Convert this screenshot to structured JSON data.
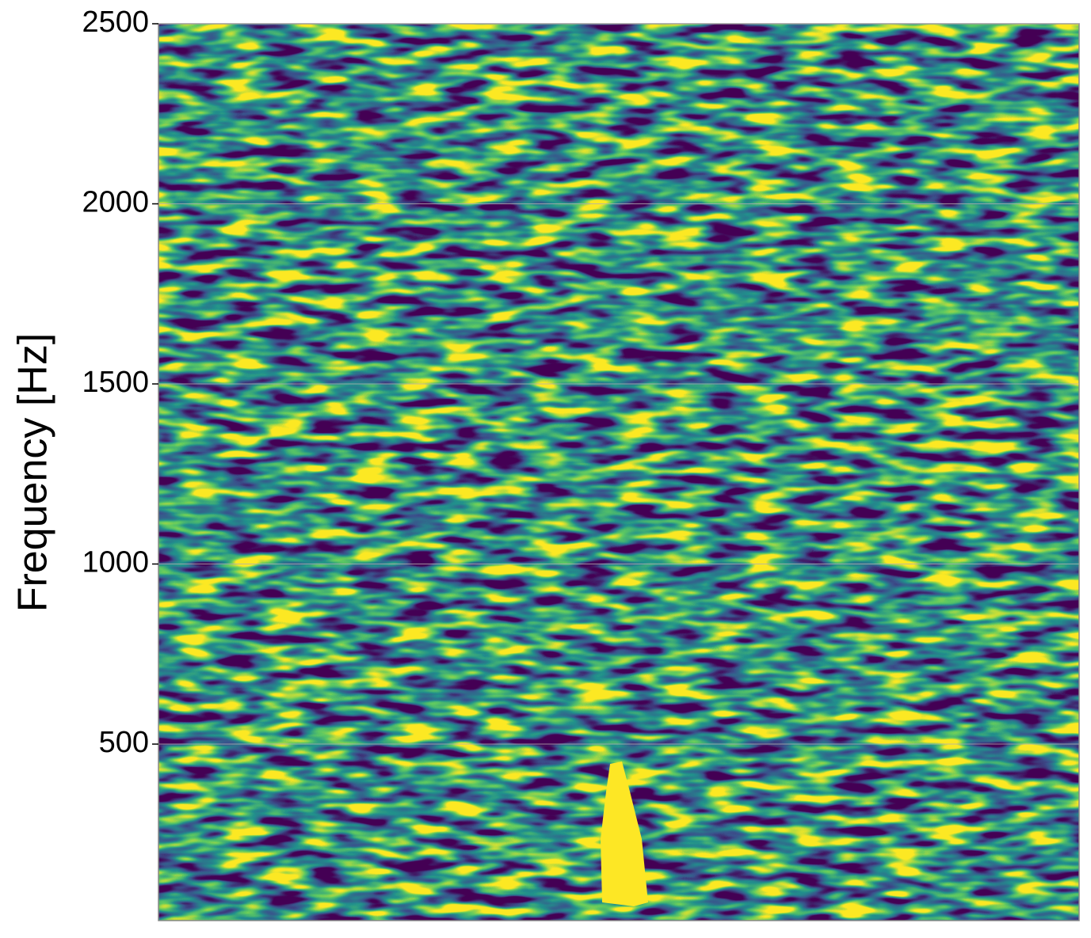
{
  "chart_data": {
    "type": "spectrogram",
    "ylabel": "Frequency [Hz]",
    "ylim": [
      10,
      2500
    ],
    "yticks": [
      500,
      1000,
      1500,
      2000,
      2500
    ],
    "grid": true,
    "colormap": "viridis"
  }
}
